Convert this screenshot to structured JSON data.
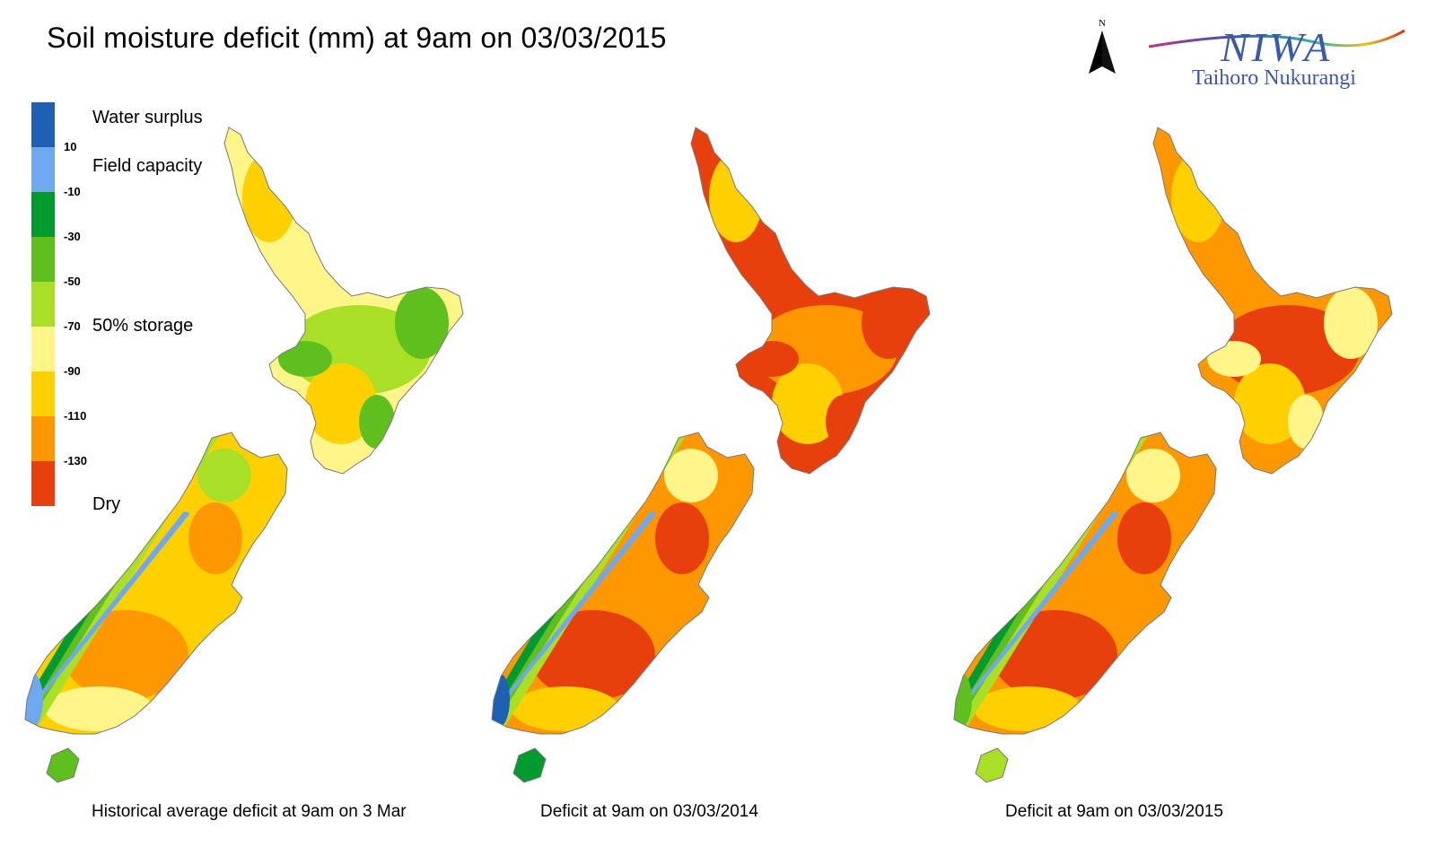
{
  "title": "Soil moisture deficit (mm) at  9am on 03/03/2015",
  "north_arrow": {
    "letter": "N",
    "icon": "north-arrow-icon"
  },
  "logo": {
    "mark": "NIWA",
    "subtitle": "Taihoro Nukurangi"
  },
  "legend": {
    "swatches": [
      {
        "color": "#1f5fb4"
      },
      {
        "color": "#6ea8f0"
      },
      {
        "color": "#009a2e"
      },
      {
        "color": "#5fbf1e"
      },
      {
        "color": "#aadf28"
      },
      {
        "color": "#fff589"
      },
      {
        "color": "#ffd000"
      },
      {
        "color": "#ff9800"
      },
      {
        "color": "#e8400c"
      }
    ],
    "ticks": [
      "10",
      "-10",
      "-30",
      "-50",
      "-70",
      "-90",
      "-110",
      "-130"
    ],
    "class_labels": {
      "water_surplus": "Water surplus",
      "field_capacity": "Field capacity",
      "storage_50": "50% storage",
      "dry": "Dry"
    }
  },
  "panels": [
    {
      "caption": "Historical average deficit at  9am on 3 Mar",
      "palette": "average"
    },
    {
      "caption": "Deficit at  9am on 03/03/2014",
      "palette": "y2014"
    },
    {
      "caption": "Deficit at  9am on 03/03/2015",
      "palette": "y2015"
    }
  ],
  "palettes": {
    "average": {
      "ni_base": "#fff589",
      "ni_a": "#aadf28",
      "ni_b": "#ffd000",
      "ni_c": "#5fbf1e",
      "si_base": "#ffd000",
      "si_a": "#ff9800",
      "si_b": "#fff589",
      "si_c": "#aadf28",
      "west_1": "#6ea8f0",
      "west_2": "#009a2e",
      "west_3": "#5fbf1e",
      "west_4": "#aadf28",
      "stewart": "#5fbf1e",
      "fiord": "#6ea8f0"
    },
    "y2014": {
      "ni_base": "#e8400c",
      "ni_a": "#ff9800",
      "ni_b": "#ffd000",
      "ni_c": "#e8400c",
      "si_base": "#ff9800",
      "si_a": "#e8400c",
      "si_b": "#ffd000",
      "si_c": "#fff589",
      "west_1": "#6ea8f0",
      "west_2": "#009a2e",
      "west_3": "#5fbf1e",
      "west_4": "#aadf28",
      "stewart": "#009a2e",
      "fiord": "#1f5fb4"
    },
    "y2015": {
      "ni_base": "#ff9800",
      "ni_a": "#e8400c",
      "ni_b": "#ffd000",
      "ni_c": "#fff589",
      "si_base": "#ff9800",
      "si_a": "#e8400c",
      "si_b": "#ffd000",
      "si_c": "#fff589",
      "west_1": "#6ea8f0",
      "west_2": "#009a2e",
      "west_3": "#5fbf1e",
      "west_4": "#aadf28",
      "stewart": "#aadf28",
      "fiord": "#5fbf1e"
    }
  }
}
